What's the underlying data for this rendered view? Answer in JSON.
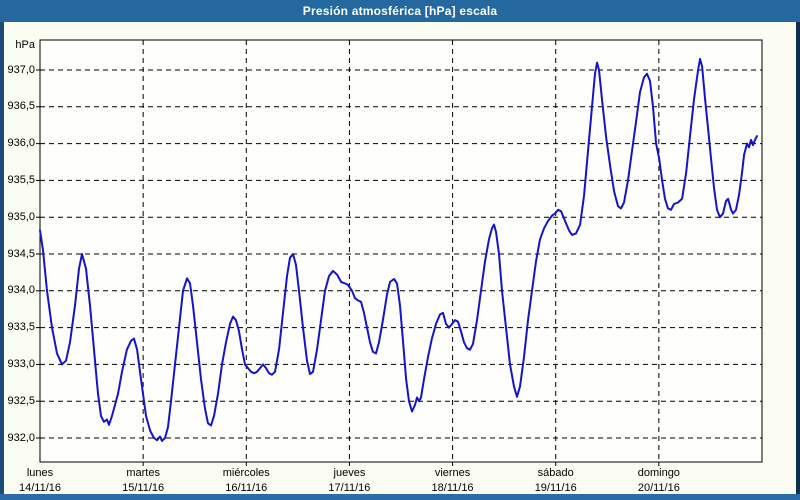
{
  "window": {
    "title": "Presión atmosférica [hPa] escala"
  },
  "colors": {
    "titlebar": "#2568a0",
    "frame_left": "#1d4b77",
    "frame_right": "#10304f",
    "frame_bottom": "#2a6ca6",
    "window_bg": "#fcfdf2",
    "plot_bg": "#fefefc",
    "grid": "#000000",
    "line": "#1414c8",
    "text": "#000000"
  },
  "chart": {
    "unit_label": "hPa",
    "y_axis": {
      "labels": [
        "937,0",
        "936,5",
        "936,0",
        "935,5",
        "935,0",
        "934,5",
        "934,0",
        "933,5",
        "933,0",
        "932,5",
        "932,0"
      ],
      "values": [
        937.0,
        936.5,
        936.0,
        935.5,
        935.0,
        934.5,
        934.0,
        933.5,
        933.0,
        932.5,
        932.0
      ]
    },
    "x_axis": {
      "days": [
        {
          "name": "lunes",
          "date": "14/11/16"
        },
        {
          "name": "martes",
          "date": "15/11/16"
        },
        {
          "name": "miércoles",
          "date": "16/11/16"
        },
        {
          "name": "jueves",
          "date": "17/11/16"
        },
        {
          "name": "viernes",
          "date": "18/11/16"
        },
        {
          "name": "sábado",
          "date": "19/11/16"
        },
        {
          "name": "domingo",
          "date": "20/11/16"
        }
      ]
    }
  },
  "chart_data": {
    "type": "line",
    "title": "Presión atmosférica [hPa] escala",
    "ylabel": "hPa",
    "ylim": [
      932.0,
      937.0
    ],
    "y_step": 0.5,
    "x_unit": "days from lunes 14/11/16 00:00 (0) to domingo 20/11/16 24:00 (7)",
    "grid": "dashed",
    "legend": "none",
    "series": [
      {
        "name": "Presión atmosférica",
        "points": [
          [
            0.0,
            934.82
          ],
          [
            0.029,
            934.55
          ],
          [
            0.068,
            934.0
          ],
          [
            0.116,
            933.5
          ],
          [
            0.165,
            933.15
          ],
          [
            0.213,
            933.0
          ],
          [
            0.252,
            933.05
          ],
          [
            0.291,
            933.3
          ],
          [
            0.339,
            933.8
          ],
          [
            0.378,
            934.3
          ],
          [
            0.407,
            934.5
          ],
          [
            0.446,
            934.3
          ],
          [
            0.485,
            933.8
          ],
          [
            0.524,
            933.2
          ],
          [
            0.562,
            932.6
          ],
          [
            0.591,
            932.3
          ],
          [
            0.62,
            932.22
          ],
          [
            0.65,
            932.25
          ],
          [
            0.669,
            932.18
          ],
          [
            0.698,
            932.3
          ],
          [
            0.727,
            932.45
          ],
          [
            0.756,
            932.6
          ],
          [
            0.795,
            932.9
          ],
          [
            0.843,
            933.2
          ],
          [
            0.882,
            933.32
          ],
          [
            0.911,
            933.35
          ],
          [
            0.941,
            933.2
          ],
          [
            0.97,
            932.9
          ],
          [
            0.999,
            932.6
          ],
          [
            1.028,
            932.3
          ],
          [
            1.067,
            932.1
          ],
          [
            1.105,
            932.0
          ],
          [
            1.134,
            931.97
          ],
          [
            1.163,
            932.02
          ],
          [
            1.183,
            931.96
          ],
          [
            1.212,
            932.0
          ],
          [
            1.241,
            932.15
          ],
          [
            1.27,
            932.5
          ],
          [
            1.309,
            933.0
          ],
          [
            1.348,
            933.5
          ],
          [
            1.386,
            934.0
          ],
          [
            1.425,
            934.17
          ],
          [
            1.454,
            934.1
          ],
          [
            1.483,
            933.8
          ],
          [
            1.522,
            933.3
          ],
          [
            1.561,
            932.8
          ],
          [
            1.6,
            932.4
          ],
          [
            1.629,
            932.2
          ],
          [
            1.658,
            932.17
          ],
          [
            1.687,
            932.3
          ],
          [
            1.726,
            932.6
          ],
          [
            1.765,
            933.0
          ],
          [
            1.803,
            933.3
          ],
          [
            1.842,
            933.55
          ],
          [
            1.871,
            933.65
          ],
          [
            1.9,
            933.6
          ],
          [
            1.929,
            933.45
          ],
          [
            1.959,
            933.2
          ],
          [
            1.988,
            933.0
          ],
          [
            2.017,
            932.95
          ],
          [
            2.046,
            932.9
          ],
          [
            2.075,
            932.88
          ],
          [
            2.104,
            932.9
          ],
          [
            2.133,
            932.95
          ],
          [
            2.162,
            933.0
          ],
          [
            2.191,
            932.95
          ],
          [
            2.22,
            932.88
          ],
          [
            2.249,
            932.86
          ],
          [
            2.278,
            932.9
          ],
          [
            2.317,
            933.2
          ],
          [
            2.356,
            933.7
          ],
          [
            2.395,
            934.2
          ],
          [
            2.424,
            934.45
          ],
          [
            2.453,
            934.5
          ],
          [
            2.482,
            934.35
          ],
          [
            2.511,
            934.0
          ],
          [
            2.55,
            933.5
          ],
          [
            2.589,
            933.05
          ],
          [
            2.618,
            932.87
          ],
          [
            2.647,
            932.9
          ],
          [
            2.686,
            933.2
          ],
          [
            2.724,
            933.6
          ],
          [
            2.763,
            934.0
          ],
          [
            2.802,
            934.2
          ],
          [
            2.841,
            934.27
          ],
          [
            2.88,
            934.22
          ],
          [
            2.919,
            934.12
          ],
          [
            2.957,
            934.1
          ],
          [
            2.986,
            934.08
          ],
          [
            3.025,
            934.0
          ],
          [
            3.054,
            933.9
          ],
          [
            3.083,
            933.87
          ],
          [
            3.112,
            933.85
          ],
          [
            3.141,
            933.7
          ],
          [
            3.17,
            933.5
          ],
          [
            3.199,
            933.3
          ],
          [
            3.229,
            933.17
          ],
          [
            3.258,
            933.15
          ],
          [
            3.287,
            933.3
          ],
          [
            3.325,
            933.6
          ],
          [
            3.364,
            933.95
          ],
          [
            3.393,
            934.12
          ],
          [
            3.432,
            934.16
          ],
          [
            3.461,
            934.1
          ],
          [
            3.49,
            933.8
          ],
          [
            3.52,
            933.3
          ],
          [
            3.549,
            932.8
          ],
          [
            3.578,
            932.5
          ],
          [
            3.607,
            932.36
          ],
          [
            3.636,
            932.45
          ],
          [
            3.655,
            932.55
          ],
          [
            3.675,
            932.5
          ],
          [
            3.694,
            932.55
          ],
          [
            3.723,
            932.8
          ],
          [
            3.762,
            933.1
          ],
          [
            3.8,
            933.35
          ],
          [
            3.839,
            933.55
          ],
          [
            3.878,
            933.68
          ],
          [
            3.907,
            933.7
          ],
          [
            3.936,
            933.55
          ],
          [
            3.965,
            933.5
          ],
          [
            3.995,
            933.55
          ],
          [
            4.024,
            933.6
          ],
          [
            4.053,
            933.58
          ],
          [
            4.082,
            933.45
          ],
          [
            4.111,
            933.3
          ],
          [
            4.14,
            933.22
          ],
          [
            4.169,
            933.2
          ],
          [
            4.198,
            933.28
          ],
          [
            4.237,
            933.6
          ],
          [
            4.276,
            934.0
          ],
          [
            4.314,
            934.4
          ],
          [
            4.353,
            934.7
          ],
          [
            4.382,
            934.85
          ],
          [
            4.402,
            934.9
          ],
          [
            4.421,
            934.8
          ],
          [
            4.45,
            934.5
          ],
          [
            4.479,
            934.0
          ],
          [
            4.518,
            933.5
          ],
          [
            4.557,
            933.0
          ],
          [
            4.596,
            932.7
          ],
          [
            4.625,
            932.56
          ],
          [
            4.654,
            932.7
          ],
          [
            4.693,
            933.1
          ],
          [
            4.731,
            933.6
          ],
          [
            4.77,
            934.0
          ],
          [
            4.809,
            934.4
          ],
          [
            4.848,
            934.7
          ],
          [
            4.887,
            934.85
          ],
          [
            4.926,
            934.95
          ],
          [
            4.964,
            935.02
          ],
          [
            4.993,
            935.05
          ],
          [
            5.023,
            935.1
          ],
          [
            5.052,
            935.08
          ],
          [
            5.09,
            934.95
          ],
          [
            5.129,
            934.82
          ],
          [
            5.158,
            934.76
          ],
          [
            5.197,
            934.78
          ],
          [
            5.236,
            934.9
          ],
          [
            5.275,
            935.3
          ],
          [
            5.313,
            935.9
          ],
          [
            5.352,
            936.5
          ],
          [
            5.381,
            936.95
          ],
          [
            5.401,
            937.1
          ],
          [
            5.42,
            937.0
          ],
          [
            5.449,
            936.6
          ],
          [
            5.488,
            936.1
          ],
          [
            5.527,
            935.7
          ],
          [
            5.566,
            935.35
          ],
          [
            5.604,
            935.15
          ],
          [
            5.633,
            935.12
          ],
          [
            5.662,
            935.2
          ],
          [
            5.701,
            935.5
          ],
          [
            5.74,
            935.9
          ],
          [
            5.779,
            936.3
          ],
          [
            5.817,
            936.7
          ],
          [
            5.856,
            936.9
          ],
          [
            5.885,
            936.95
          ],
          [
            5.914,
            936.85
          ],
          [
            5.943,
            936.5
          ],
          [
            5.973,
            936.0
          ],
          [
            6.002,
            935.8
          ],
          [
            6.031,
            935.5
          ],
          [
            6.06,
            935.25
          ],
          [
            6.089,
            935.12
          ],
          [
            6.118,
            935.1
          ],
          [
            6.147,
            935.18
          ],
          [
            6.186,
            935.2
          ],
          [
            6.225,
            935.25
          ],
          [
            6.264,
            935.6
          ],
          [
            6.302,
            936.1
          ],
          [
            6.341,
            936.6
          ],
          [
            6.38,
            937.0
          ],
          [
            6.399,
            937.15
          ],
          [
            6.419,
            937.05
          ],
          [
            6.448,
            936.6
          ],
          [
            6.477,
            936.2
          ],
          [
            6.506,
            935.8
          ],
          [
            6.535,
            935.4
          ],
          [
            6.564,
            935.1
          ],
          [
            6.593,
            935.0
          ],
          [
            6.622,
            935.05
          ],
          [
            6.651,
            935.22
          ],
          [
            6.671,
            935.25
          ],
          [
            6.7,
            935.1
          ],
          [
            6.719,
            935.05
          ],
          [
            6.748,
            935.1
          ],
          [
            6.777,
            935.3
          ],
          [
            6.806,
            935.6
          ],
          [
            6.826,
            935.85
          ],
          [
            6.855,
            936.0
          ],
          [
            6.874,
            935.95
          ],
          [
            6.893,
            936.05
          ],
          [
            6.913,
            935.98
          ],
          [
            6.932,
            936.05
          ],
          [
            6.951,
            936.1
          ]
        ]
      }
    ]
  }
}
